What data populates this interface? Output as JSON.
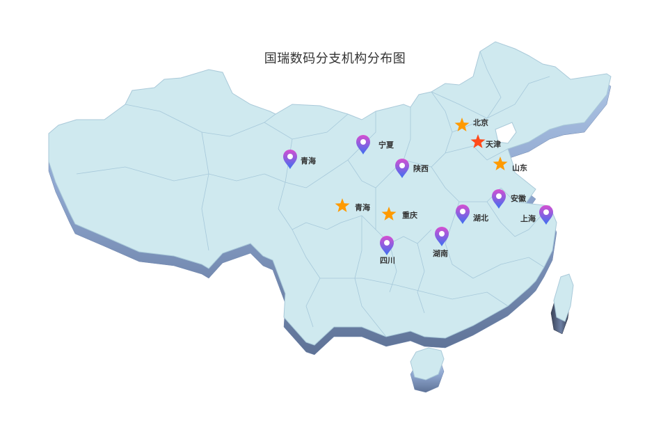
{
  "title": "国瑞数码分支机构分布图",
  "colors": {
    "land_top": "#cfe9ef",
    "land_border": "#a9c9d9",
    "province_line": "#a6c8da",
    "side_light": "#9fb9de",
    "side_dark": "#5e7296",
    "side_darkest": "#2c3344",
    "pin_top": "#d64fd0",
    "pin_bottom": "#3d6ff0",
    "star_orange": "#ff9a00",
    "star_red": "#ff4a1a"
  },
  "markers": {
    "pins": [
      {
        "label": "宁夏",
        "icon": "map-pin-icon"
      },
      {
        "label": "青海",
        "icon": "map-pin-icon"
      },
      {
        "label": "陕西",
        "icon": "map-pin-icon"
      },
      {
        "label": "安徽",
        "icon": "map-pin-icon"
      },
      {
        "label": "湖北",
        "icon": "map-pin-icon"
      },
      {
        "label": "上海",
        "icon": "map-pin-icon"
      },
      {
        "label": "湖南",
        "icon": "map-pin-icon"
      },
      {
        "label": "四川",
        "icon": "map-pin-icon"
      }
    ],
    "stars": [
      {
        "label": "北京",
        "icon": "star-icon",
        "color": "#ff9a00"
      },
      {
        "label": "天津",
        "icon": "star-icon",
        "color": "#ff4a1a"
      },
      {
        "label": "山东",
        "icon": "star-icon",
        "color": "#ff9a00"
      },
      {
        "label": "青海",
        "icon": "star-icon",
        "color": "#ff9a00"
      },
      {
        "label": "重庆",
        "icon": "star-icon",
        "color": "#ff9a00"
      }
    ]
  }
}
